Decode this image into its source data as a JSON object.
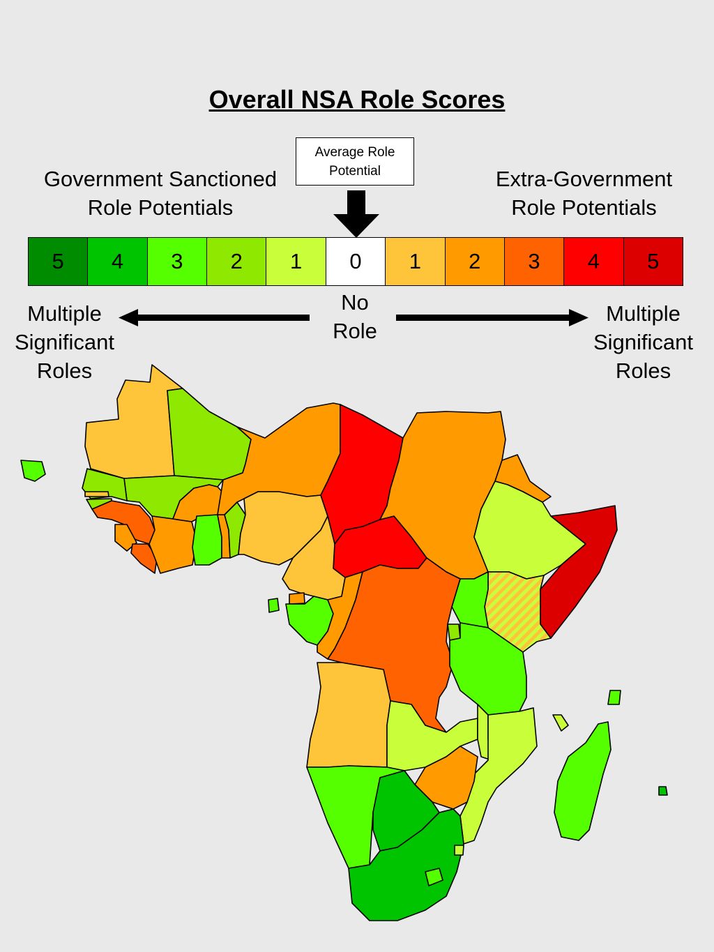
{
  "title": "Overall NSA Role Scores",
  "center_box": {
    "line1": "Average Role",
    "line2": "Potential"
  },
  "left_heading": {
    "line1": "Government Sanctioned",
    "line2": "Role Potentials"
  },
  "right_heading": {
    "line1": "Extra-Government",
    "line2": "Role Potentials"
  },
  "scale": [
    {
      "label": "5",
      "color": "#008c00"
    },
    {
      "label": "4",
      "color": "#00c400"
    },
    {
      "label": "3",
      "color": "#55ff00"
    },
    {
      "label": "2",
      "color": "#8fe800"
    },
    {
      "label": "1",
      "color": "#c8ff3a"
    },
    {
      "label": "0",
      "color": "#ffffff"
    },
    {
      "label": "1",
      "color": "#ffc53a"
    },
    {
      "label": "2",
      "color": "#ff9a00"
    },
    {
      "label": "3",
      "color": "#ff6200"
    },
    {
      "label": "4",
      "color": "#ff0000"
    },
    {
      "label": "5",
      "color": "#dc0000"
    }
  ],
  "center_below": {
    "line1": "No",
    "line2": "Role"
  },
  "left_end": {
    "line1": "Multiple",
    "line2": "Significant",
    "line3": "Roles"
  },
  "right_end": {
    "line1": "Multiple",
    "line2": "Significant",
    "line3": "Roles"
  },
  "hatch_colors": [
    "#ffc53a",
    "#c8ff3a"
  ]
}
